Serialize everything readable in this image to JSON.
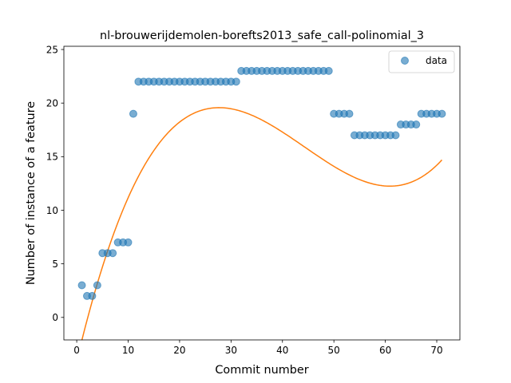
{
  "chart_data": {
    "type": "scatter",
    "title": "nl-brouwerijdemolen-borefts2013_safe_call-polinomial_3",
    "xlabel": "Commit number",
    "ylabel": "Number of instance of a feature",
    "xlim": [
      -2.5,
      74.5
    ],
    "ylim": [
      -2.1,
      25.3
    ],
    "xticks": [
      0,
      10,
      20,
      30,
      40,
      50,
      60,
      70
    ],
    "yticks": [
      0,
      5,
      10,
      15,
      20,
      25
    ],
    "legend": {
      "position": "top-right",
      "entries": [
        "data"
      ]
    },
    "colors": {
      "data": "#1f77b4",
      "fit": "#ff7f0e"
    },
    "series": [
      {
        "name": "data",
        "kind": "scatter",
        "x": [
          1,
          2,
          3,
          4,
          5,
          6,
          7,
          8,
          9,
          10,
          11,
          12,
          13,
          14,
          15,
          16,
          17,
          18,
          19,
          20,
          21,
          22,
          23,
          24,
          25,
          26,
          27,
          28,
          29,
          30,
          31,
          32,
          33,
          34,
          35,
          36,
          37,
          38,
          39,
          40,
          41,
          42,
          43,
          44,
          45,
          46,
          47,
          48,
          49,
          50,
          51,
          52,
          53,
          54,
          55,
          56,
          57,
          58,
          59,
          60,
          61,
          62,
          63,
          64,
          65,
          66,
          67,
          68,
          69,
          70,
          71
        ],
        "y": [
          3,
          2,
          2,
          3,
          6,
          6,
          6,
          7,
          7,
          7,
          19,
          22,
          22,
          22,
          22,
          22,
          22,
          22,
          22,
          22,
          22,
          22,
          22,
          22,
          22,
          22,
          22,
          22,
          22,
          22,
          22,
          23,
          23,
          23,
          23,
          23,
          23,
          23,
          23,
          23,
          23,
          23,
          23,
          23,
          23,
          23,
          23,
          23,
          23,
          19,
          19,
          19,
          19,
          17,
          17,
          17,
          17,
          17,
          17,
          17,
          17,
          17,
          18,
          18,
          18,
          18,
          19,
          19,
          19,
          19,
          19
        ]
      },
      {
        "kind": "line",
        "coefficients": [
          -4.0896,
          2.0162,
          -0.053,
          0.000399
        ],
        "x_range": [
          1,
          71
        ]
      }
    ]
  }
}
